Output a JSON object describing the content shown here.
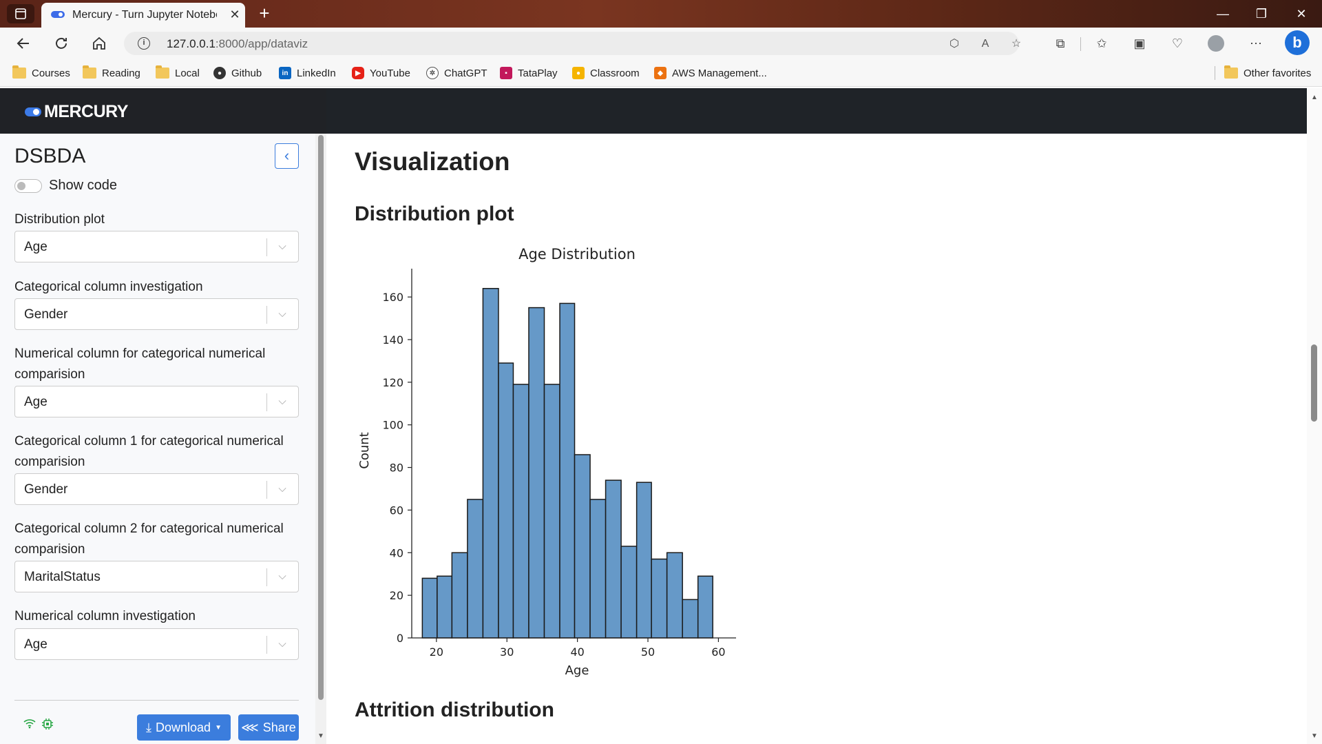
{
  "browser": {
    "tab_title": "Mercury - Turn Jupyter Notebook",
    "url_host": "127.0.0.1",
    "url_rest": ":8000/app/dataviz",
    "bookmarks": [
      {
        "label": "Courses",
        "icon": "folder-icon"
      },
      {
        "label": "Reading",
        "icon": "folder-icon"
      },
      {
        "label": "Local",
        "icon": "folder-icon"
      },
      {
        "label": "Github",
        "icon": "github-icon"
      },
      {
        "label": "LinkedIn",
        "icon": "linkedin-icon"
      },
      {
        "label": "YouTube",
        "icon": "youtube-icon"
      },
      {
        "label": "ChatGPT",
        "icon": "chatgpt-icon"
      },
      {
        "label": "TataPlay",
        "icon": "tataplay-icon"
      },
      {
        "label": "Classroom",
        "icon": "classroom-icon"
      },
      {
        "label": "AWS Management...",
        "icon": "aws-icon"
      }
    ],
    "other_favorites": "Other favorites"
  },
  "app": {
    "logo_text": "MERCURY",
    "accent": "#3b7ddd"
  },
  "sidebar": {
    "title": "DSBDA",
    "show_code_label": "Show code",
    "fields": [
      {
        "label": "Distribution plot",
        "value": "Age"
      },
      {
        "label": "Categorical column investigation",
        "value": "Gender"
      },
      {
        "label": "Numerical column for categorical numerical comparision",
        "value": "Age"
      },
      {
        "label": "Categorical column 1 for categorical numerical comparision",
        "value": "Gender"
      },
      {
        "label": "Categorical column 2 for categorical numerical comparision",
        "value": "MaritalStatus"
      },
      {
        "label": "Numerical column investigation",
        "value": "Age"
      }
    ],
    "download_label": "Download",
    "share_label": "Share"
  },
  "main": {
    "heading": "Visualization",
    "section1": "Distribution plot",
    "section2": "Attrition distribution"
  },
  "chart_data": {
    "type": "bar",
    "title": "Age Distribution",
    "xlabel": "Age",
    "ylabel": "Count",
    "bar_color": "#6699c8",
    "bins": [
      {
        "x0": 18.0,
        "x1": 20.1,
        "count": 28
      },
      {
        "x0": 20.1,
        "x1": 22.2,
        "count": 29
      },
      {
        "x0": 22.2,
        "x1": 24.4,
        "count": 40
      },
      {
        "x0": 24.4,
        "x1": 26.6,
        "count": 65
      },
      {
        "x0": 26.6,
        "x1": 28.8,
        "count": 164
      },
      {
        "x0": 28.8,
        "x1": 30.9,
        "count": 129
      },
      {
        "x0": 30.9,
        "x1": 33.1,
        "count": 119
      },
      {
        "x0": 33.1,
        "x1": 35.3,
        "count": 155
      },
      {
        "x0": 35.3,
        "x1": 37.5,
        "count": 119
      },
      {
        "x0": 37.5,
        "x1": 39.6,
        "count": 157
      },
      {
        "x0": 39.6,
        "x1": 41.8,
        "count": 86
      },
      {
        "x0": 41.8,
        "x1": 44.0,
        "count": 65
      },
      {
        "x0": 44.0,
        "x1": 46.2,
        "count": 74
      },
      {
        "x0": 46.2,
        "x1": 48.4,
        "count": 43
      },
      {
        "x0": 48.4,
        "x1": 50.5,
        "count": 73
      },
      {
        "x0": 50.5,
        "x1": 52.7,
        "count": 37
      },
      {
        "x0": 52.7,
        "x1": 54.9,
        "count": 40
      },
      {
        "x0": 54.9,
        "x1": 57.1,
        "count": 18
      },
      {
        "x0": 57.1,
        "x1": 59.2,
        "count": 29
      }
    ],
    "xticks": [
      20,
      30,
      40,
      50,
      60
    ],
    "yticks": [
      0,
      20,
      40,
      60,
      80,
      100,
      120,
      140,
      160
    ],
    "xlim": [
      16.5,
      62.5
    ],
    "ylim": [
      0,
      172
    ],
    "grid": false
  }
}
